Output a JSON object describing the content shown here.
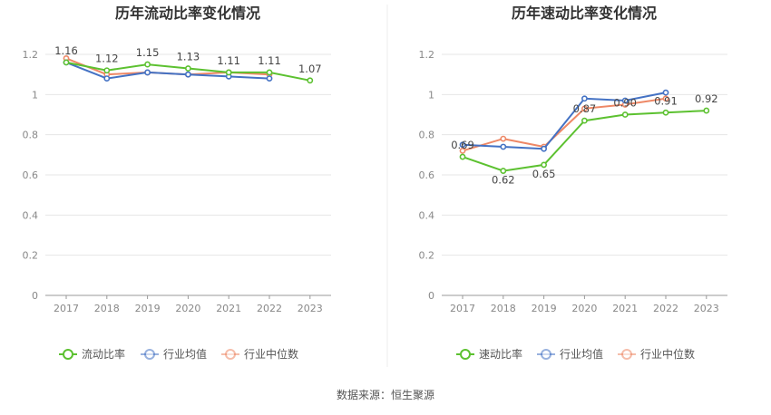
{
  "source": {
    "label": "数据来源：",
    "value": "恒生聚源"
  },
  "colors": {
    "company": "#5cc130",
    "industry_avg": "#4472c4",
    "industry_median": "#ee8866"
  },
  "legend": {
    "industry_avg": "行业均值",
    "industry_median": "行业中位数"
  },
  "chart_data": [
    {
      "type": "line",
      "title": "历年流动比率变化情况",
      "categories": [
        "2017",
        "2018",
        "2019",
        "2020",
        "2021",
        "2022",
        "2023"
      ],
      "ylim": [
        0,
        1.2
      ],
      "yticks": [
        "0",
        "0.2",
        "0.4",
        "0.6",
        "0.8",
        "1",
        "1.2"
      ],
      "grid": true,
      "legend_position": "bottom",
      "series": [
        {
          "name": "流动比率",
          "key": "company",
          "values": [
            1.16,
            1.12,
            1.15,
            1.13,
            1.11,
            1.11,
            1.07
          ],
          "labels": [
            "1.16",
            "1.12",
            "1.15",
            "1.13",
            "1.11",
            "1.11",
            "1.07"
          ]
        },
        {
          "name": "行业均值",
          "key": "industry_avg",
          "values": [
            1.16,
            1.08,
            1.11,
            1.1,
            1.09,
            1.08,
            null
          ]
        },
        {
          "name": "行业中位数",
          "key": "industry_median",
          "values": [
            1.18,
            1.1,
            1.11,
            1.1,
            1.11,
            1.1,
            null
          ]
        }
      ]
    },
    {
      "type": "line",
      "title": "历年速动比率变化情况",
      "categories": [
        "2017",
        "2018",
        "2019",
        "2020",
        "2021",
        "2022",
        "2023"
      ],
      "ylim": [
        0,
        1.2
      ],
      "yticks": [
        "0",
        "0.2",
        "0.4",
        "0.6",
        "0.8",
        "1",
        "1.2"
      ],
      "grid": true,
      "legend_position": "bottom",
      "series": [
        {
          "name": "速动比率",
          "key": "company",
          "values": [
            0.69,
            0.62,
            0.65,
            0.87,
            0.9,
            0.91,
            0.92
          ],
          "labels": [
            "0.69",
            "0.62",
            "0.65",
            "0.87",
            "0.90",
            "0.91",
            "0.92"
          ]
        },
        {
          "name": "行业均值",
          "key": "industry_avg",
          "values": [
            0.75,
            0.74,
            0.73,
            0.98,
            0.97,
            1.01,
            null
          ]
        },
        {
          "name": "行业中位数",
          "key": "industry_median",
          "values": [
            0.72,
            0.78,
            0.74,
            0.93,
            0.95,
            0.98,
            null
          ]
        }
      ]
    }
  ]
}
